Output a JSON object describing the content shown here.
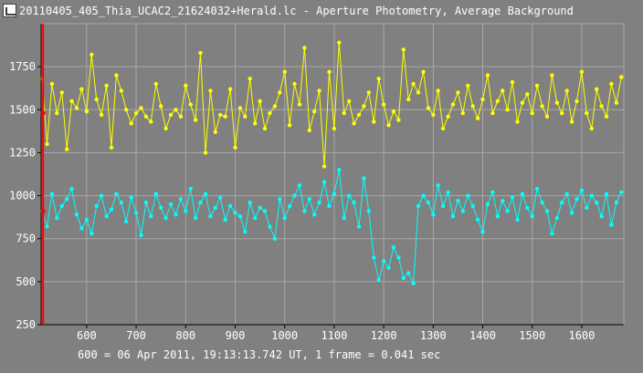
{
  "window": {
    "title": "20110405_405_Thia_UCAC2_21624032+Herald.lc - Aperture Photometry, Average Background",
    "icon": "light-curve-app-icon"
  },
  "footer": {
    "status": "600 = 06 Apr 2011, 19:13:13.742 UT, 1 frame = 0.041 sec"
  },
  "colors": {
    "background": "#808080",
    "grid": "#a8a8a8",
    "axis": "#000000",
    "series_target": "#ffff00",
    "series_comparison": "#00ffff",
    "cursor": "#ff0000"
  },
  "chart_data": {
    "type": "line",
    "title": "",
    "xlabel": "",
    "ylabel": "",
    "xlim": [
      508,
      1685
    ],
    "ylim": [
      250,
      2000
    ],
    "x_ticks": [
      600,
      700,
      800,
      900,
      1000,
      1100,
      1200,
      1300,
      1400,
      1500,
      1600
    ],
    "y_ticks": [
      250,
      500,
      750,
      1000,
      1250,
      1500,
      1750
    ],
    "grid": true,
    "cursor_x": 512,
    "series": [
      {
        "key": "target",
        "color": "#ffff00",
        "x": [
          510,
          520,
          530,
          540,
          550,
          560,
          570,
          580,
          590,
          600,
          610,
          620,
          630,
          640,
          650,
          660,
          670,
          680,
          690,
          700,
          710,
          720,
          730,
          740,
          750,
          760,
          770,
          780,
          790,
          800,
          810,
          820,
          830,
          840,
          850,
          860,
          870,
          880,
          890,
          900,
          910,
          920,
          930,
          940,
          950,
          960,
          970,
          980,
          990,
          1000,
          1010,
          1020,
          1030,
          1040,
          1050,
          1060,
          1070,
          1080,
          1090,
          1100,
          1110,
          1120,
          1130,
          1140,
          1150,
          1160,
          1170,
          1180,
          1190,
          1200,
          1210,
          1220,
          1230,
          1240,
          1250,
          1260,
          1270,
          1280,
          1290,
          1300,
          1310,
          1320,
          1330,
          1340,
          1350,
          1360,
          1370,
          1380,
          1390,
          1400,
          1410,
          1420,
          1430,
          1440,
          1450,
          1460,
          1470,
          1480,
          1490,
          1500,
          1510,
          1520,
          1530,
          1540,
          1550,
          1560,
          1570,
          1580,
          1590,
          1600,
          1610,
          1620,
          1630,
          1640,
          1650,
          1660,
          1670,
          1680
        ],
        "values": [
          1680,
          1300,
          1650,
          1480,
          1600,
          1270,
          1550,
          1510,
          1620,
          1490,
          1820,
          1560,
          1470,
          1640,
          1280,
          1700,
          1610,
          1500,
          1420,
          1480,
          1510,
          1460,
          1430,
          1650,
          1520,
          1390,
          1470,
          1500,
          1460,
          1640,
          1530,
          1440,
          1830,
          1250,
          1610,
          1370,
          1470,
          1460,
          1620,
          1280,
          1510,
          1460,
          1680,
          1420,
          1550,
          1390,
          1480,
          1520,
          1600,
          1720,
          1410,
          1650,
          1530,
          1860,
          1380,
          1490,
          1610,
          1170,
          1720,
          1390,
          1890,
          1480,
          1550,
          1420,
          1470,
          1520,
          1600,
          1430,
          1680,
          1530,
          1410,
          1490,
          1440,
          1850,
          1560,
          1650,
          1600,
          1720,
          1510,
          1470,
          1610,
          1390,
          1460,
          1530,
          1600,
          1480,
          1640,
          1520,
          1450,
          1560,
          1700,
          1480,
          1550,
          1610,
          1500,
          1660,
          1430,
          1540,
          1590,
          1480,
          1640,
          1520,
          1460,
          1700,
          1540,
          1480,
          1610,
          1430,
          1550,
          1720,
          1480,
          1390,
          1620,
          1520,
          1460,
          1650,
          1540,
          1690
        ]
      },
      {
        "key": "comparison",
        "color": "#00ffff",
        "x": [
          510,
          520,
          530,
          540,
          550,
          560,
          570,
          580,
          590,
          600,
          610,
          620,
          630,
          640,
          650,
          660,
          670,
          680,
          690,
          700,
          710,
          720,
          730,
          740,
          750,
          760,
          770,
          780,
          790,
          800,
          810,
          820,
          830,
          840,
          850,
          860,
          870,
          880,
          890,
          900,
          910,
          920,
          930,
          940,
          950,
          960,
          970,
          980,
          990,
          1000,
          1010,
          1020,
          1030,
          1040,
          1050,
          1060,
          1070,
          1080,
          1090,
          1100,
          1110,
          1120,
          1130,
          1140,
          1150,
          1160,
          1170,
          1180,
          1190,
          1200,
          1210,
          1220,
          1230,
          1240,
          1250,
          1260,
          1270,
          1280,
          1290,
          1300,
          1310,
          1320,
          1330,
          1340,
          1350,
          1360,
          1370,
          1380,
          1390,
          1400,
          1410,
          1420,
          1430,
          1440,
          1450,
          1460,
          1470,
          1480,
          1490,
          1500,
          1510,
          1520,
          1530,
          1540,
          1550,
          1560,
          1570,
          1580,
          1590,
          1600,
          1610,
          1620,
          1630,
          1640,
          1650,
          1660,
          1670,
          1680
        ],
        "values": [
          910,
          820,
          1010,
          870,
          940,
          980,
          1040,
          890,
          810,
          860,
          780,
          940,
          1000,
          880,
          920,
          1010,
          960,
          850,
          990,
          900,
          770,
          960,
          880,
          1010,
          930,
          870,
          950,
          890,
          980,
          910,
          1040,
          870,
          960,
          1010,
          880,
          930,
          990,
          860,
          940,
          900,
          880,
          790,
          960,
          870,
          930,
          910,
          820,
          750,
          980,
          870,
          940,
          1000,
          1060,
          910,
          980,
          890,
          960,
          1080,
          940,
          1010,
          1150,
          870,
          1000,
          960,
          820,
          1100,
          910,
          640,
          510,
          620,
          580,
          700,
          640,
          520,
          550,
          490,
          940,
          1000,
          960,
          890,
          1060,
          940,
          1020,
          880,
          970,
          910,
          1000,
          940,
          860,
          790,
          950,
          1020,
          880,
          970,
          910,
          990,
          860,
          1010,
          930,
          880,
          1040,
          960,
          910,
          780,
          870,
          960,
          1010,
          900,
          980,
          1030,
          930,
          1000,
          960,
          880,
          1010,
          830,
          960,
          1020
        ]
      }
    ]
  }
}
